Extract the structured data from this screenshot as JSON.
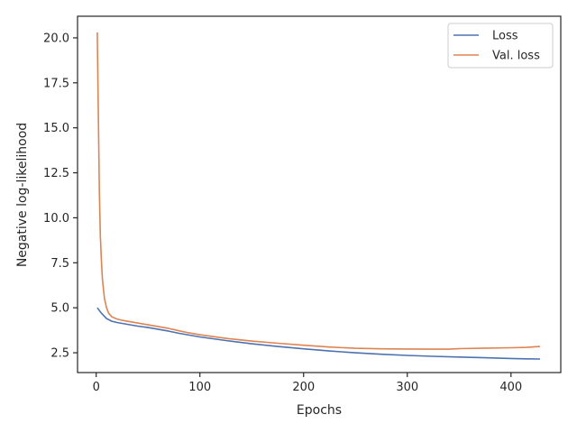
{
  "chart_data": {
    "type": "line",
    "title": "",
    "xlabel": "Epochs",
    "ylabel": "Negative log-likelihood",
    "xlim": [
      -18,
      448
    ],
    "ylim": [
      1.4,
      21.2
    ],
    "xticks": [
      0,
      100,
      200,
      300,
      400
    ],
    "xtick_labels": [
      "0",
      "100",
      "200",
      "300",
      "400"
    ],
    "yticks": [
      2.5,
      5.0,
      7.5,
      10.0,
      12.5,
      15.0,
      17.5,
      20.0
    ],
    "ytick_labels": [
      "2.5",
      "5.0",
      "7.5",
      "10.0",
      "12.5",
      "15.0",
      "17.5",
      "20.0"
    ],
    "grid": false,
    "legend_position": "top-right",
    "series": [
      {
        "name": "Loss",
        "color": "#4c72b0",
        "x": [
          1,
          5,
          10,
          15,
          20,
          30,
          40,
          50,
          60,
          70,
          80,
          90,
          100,
          125,
          150,
          175,
          200,
          225,
          250,
          275,
          300,
          325,
          350,
          375,
          400,
          415,
          428
        ],
        "y": [
          5.0,
          4.7,
          4.4,
          4.25,
          4.18,
          4.08,
          3.98,
          3.9,
          3.8,
          3.7,
          3.58,
          3.48,
          3.38,
          3.18,
          3.0,
          2.85,
          2.72,
          2.6,
          2.5,
          2.42,
          2.35,
          2.3,
          2.26,
          2.22,
          2.18,
          2.16,
          2.15
        ]
      },
      {
        "name": "Val. loss",
        "color": "#dd8452",
        "x": [
          1,
          2,
          3,
          4,
          5,
          6,
          7,
          8,
          10,
          12,
          15,
          20,
          25,
          30,
          40,
          50,
          60,
          70,
          80,
          90,
          100,
          125,
          150,
          175,
          200,
          225,
          250,
          275,
          300,
          325,
          340,
          350,
          375,
          400,
          415,
          428
        ],
        "y": [
          20.3,
          16.0,
          11.5,
          9.0,
          7.6,
          6.6,
          6.0,
          5.5,
          5.0,
          4.7,
          4.5,
          4.38,
          4.3,
          4.25,
          4.15,
          4.05,
          3.95,
          3.85,
          3.72,
          3.6,
          3.5,
          3.3,
          3.15,
          3.03,
          2.92,
          2.82,
          2.75,
          2.72,
          2.71,
          2.7,
          2.7,
          2.73,
          2.76,
          2.78,
          2.8,
          2.85
        ]
      }
    ]
  }
}
